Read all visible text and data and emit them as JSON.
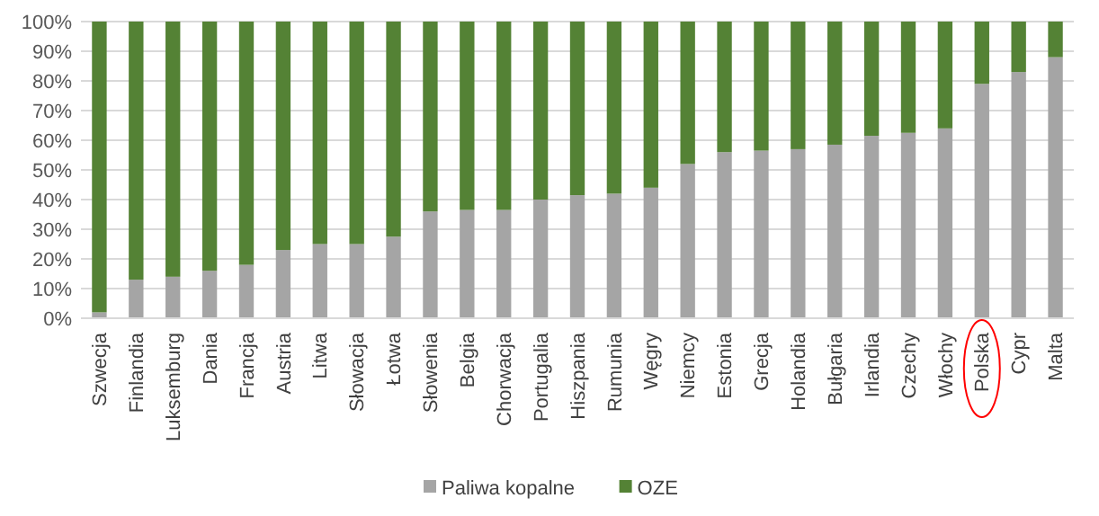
{
  "chart_data": {
    "type": "bar",
    "stacked": true,
    "categories": [
      "Szwecja",
      "Finlandia",
      "Luksemburg",
      "Dania",
      "Francja",
      "Austria",
      "Litwa",
      "Słowacja",
      "Łotwa",
      "Słowenia",
      "Belgia",
      "Chorwacja",
      "Portugalia",
      "Hiszpania",
      "Rumunia",
      "Węgry",
      "Niemcy",
      "Estonia",
      "Grecja",
      "Holandia",
      "Bułgaria",
      "Irlandia",
      "Czechy",
      "Włochy",
      "Polska",
      "Cypr",
      "Malta"
    ],
    "series": [
      {
        "name": "Paliwa kopalne",
        "color": "#a5a5a5",
        "values": [
          2,
          13,
          14,
          16,
          18,
          23,
          25,
          25,
          27.5,
          36,
          36.5,
          36.5,
          40,
          41.5,
          42,
          44,
          52,
          56,
          56.5,
          57,
          58.5,
          61.5,
          62.5,
          64,
          79,
          83,
          88
        ]
      },
      {
        "name": "OZE",
        "color": "#548235",
        "values": [
          98,
          87,
          86,
          84,
          82,
          77,
          75,
          75,
          72.5,
          64,
          63.5,
          63.5,
          60,
          58.5,
          58,
          56,
          48,
          44,
          43.5,
          43,
          41.5,
          38.5,
          37.5,
          36,
          21,
          17,
          12
        ]
      }
    ],
    "ylim": [
      0,
      100
    ],
    "yticks": [
      {
        "value": 0,
        "label": "0%"
      },
      {
        "value": 10,
        "label": "10%"
      },
      {
        "value": 20,
        "label": "20%"
      },
      {
        "value": 30,
        "label": "30%"
      },
      {
        "value": 40,
        "label": "40%"
      },
      {
        "value": 50,
        "label": "50%"
      },
      {
        "value": 60,
        "label": "60%"
      },
      {
        "value": 70,
        "label": "70%"
      },
      {
        "value": 80,
        "label": "80%"
      },
      {
        "value": 90,
        "label": "90%"
      },
      {
        "value": 100,
        "label": "100%"
      }
    ],
    "grid": "y",
    "legend": "bottom"
  }
}
